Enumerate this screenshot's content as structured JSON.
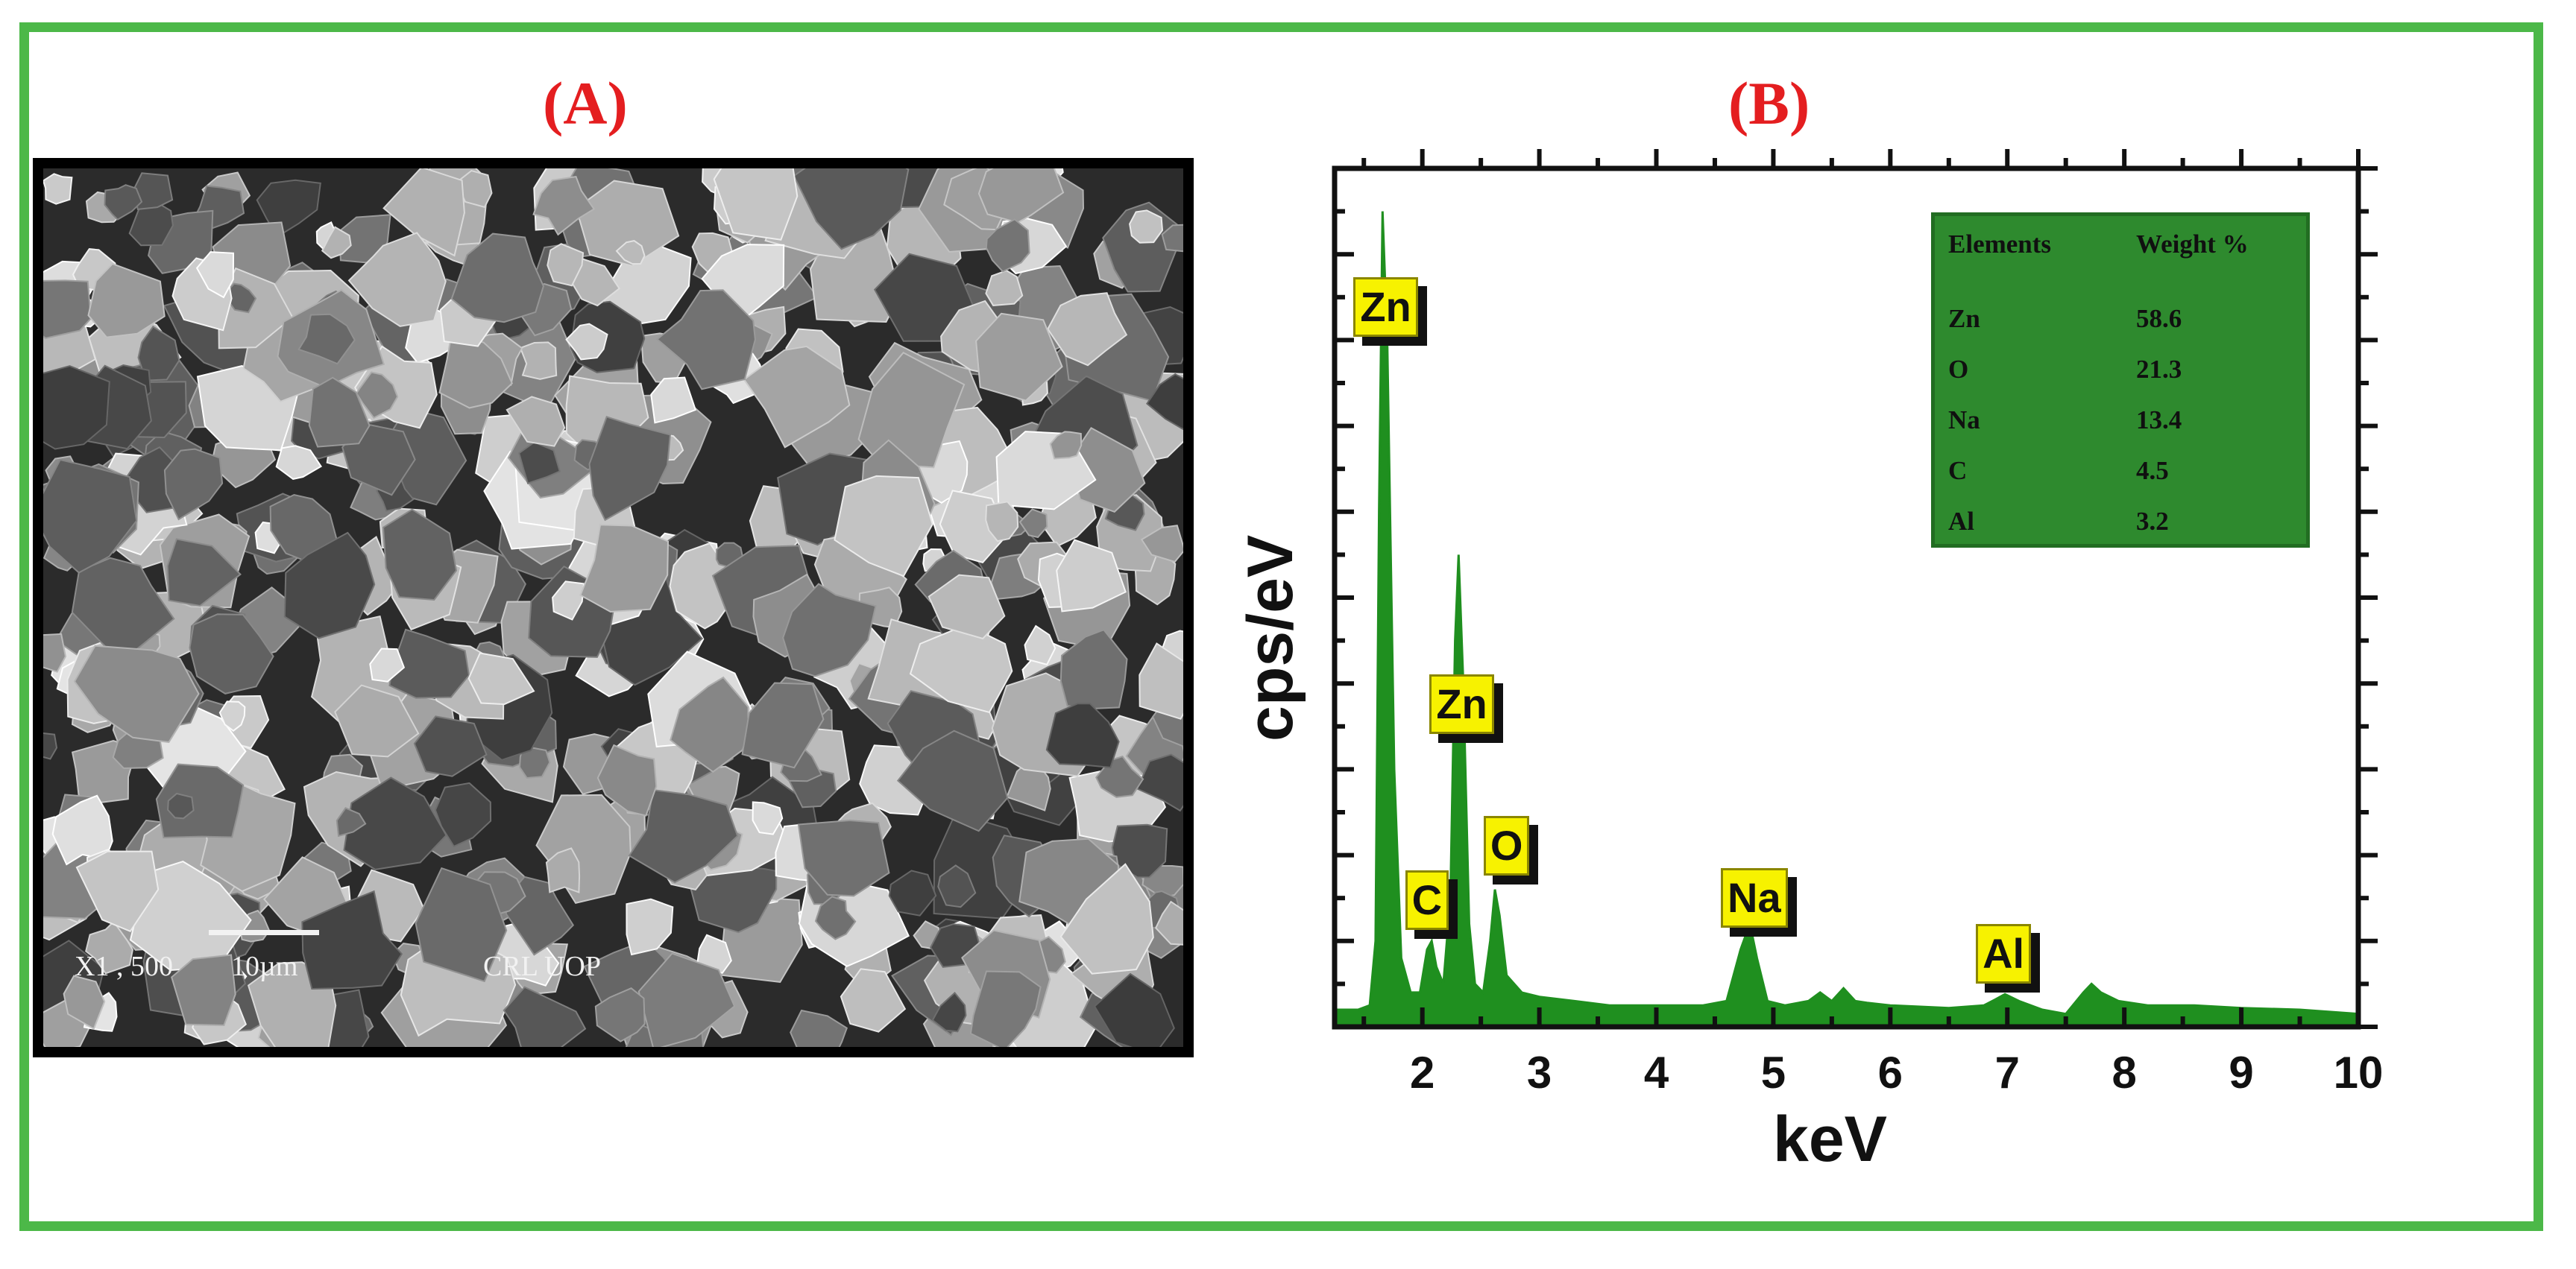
{
  "panels": {
    "a_label": "(A)",
    "b_label": "(B)"
  },
  "sem": {
    "magnification": "X1 , 500",
    "scale_label": "10µm",
    "lab": "CRL UOP"
  },
  "colors": {
    "frame": "#4cb848",
    "panel_label": "#e41e20",
    "spectrum": "#1f8f1f",
    "peak_label": "#f7f200",
    "table_bg": "#2e8a2e"
  },
  "chart_data": {
    "type": "area",
    "xlabel": "keV",
    "ylabel": "cps/eV",
    "xlim": [
      1.25,
      10
    ],
    "ylim": [
      0,
      100
    ],
    "x_ticks": [
      "2",
      "3",
      "4",
      "5",
      "6",
      "7",
      "8",
      "9",
      "10"
    ],
    "series": [
      {
        "x": [
          1.25,
          1.45,
          1.55,
          1.6,
          1.63,
          1.66,
          1.7,
          1.76,
          1.82,
          1.9,
          1.98,
          2.04,
          2.08,
          2.12,
          2.18,
          2.24,
          2.28,
          2.31,
          2.35,
          2.4,
          2.45,
          2.52,
          2.58,
          2.62,
          2.66,
          2.72,
          2.85,
          3.0,
          3.3,
          3.6,
          4.0,
          4.4,
          4.6,
          4.72,
          4.8,
          4.86,
          4.95,
          5.1,
          5.3,
          5.4,
          5.5,
          5.6,
          5.7,
          5.8,
          6.0,
          6.5,
          6.8,
          6.9,
          6.98,
          7.1,
          7.3,
          7.5,
          7.65,
          7.72,
          7.8,
          7.95,
          8.2,
          8.6,
          9.0,
          9.5,
          10.0
        ],
        "y": [
          2,
          2,
          2.5,
          10,
          60,
          95,
          80,
          30,
          8,
          4,
          4,
          9,
          10,
          7,
          5,
          15,
          45,
          55,
          40,
          12,
          5,
          4,
          10,
          16,
          13,
          6,
          4,
          3.5,
          3,
          2.5,
          2.5,
          2.5,
          3,
          9,
          12,
          8,
          3,
          2.5,
          3,
          4,
          3,
          4.5,
          3,
          2.8,
          2.5,
          2.2,
          2.5,
          3.2,
          3.8,
          3,
          2,
          1.5,
          4,
          5,
          4,
          3,
          2.5,
          2.5,
          2.2,
          2,
          1.5
        ]
      }
    ],
    "peak_labels": [
      {
        "label": "Zn",
        "x": 1.66
      },
      {
        "label": "Zn",
        "x": 2.31
      },
      {
        "label": "C",
        "x": 2.0
      },
      {
        "label": "O",
        "x": 2.67
      },
      {
        "label": "Na",
        "x": 4.8
      },
      {
        "label": "Al",
        "x": 6.98
      }
    ],
    "table": {
      "headers": [
        "Elements",
        "Weight %"
      ],
      "rows": [
        [
          "Zn",
          "58.6"
        ],
        [
          "O",
          "21.3"
        ],
        [
          "Na",
          "13.4"
        ],
        [
          "C",
          "4.5"
        ],
        [
          "Al",
          "3.2"
        ]
      ]
    }
  }
}
